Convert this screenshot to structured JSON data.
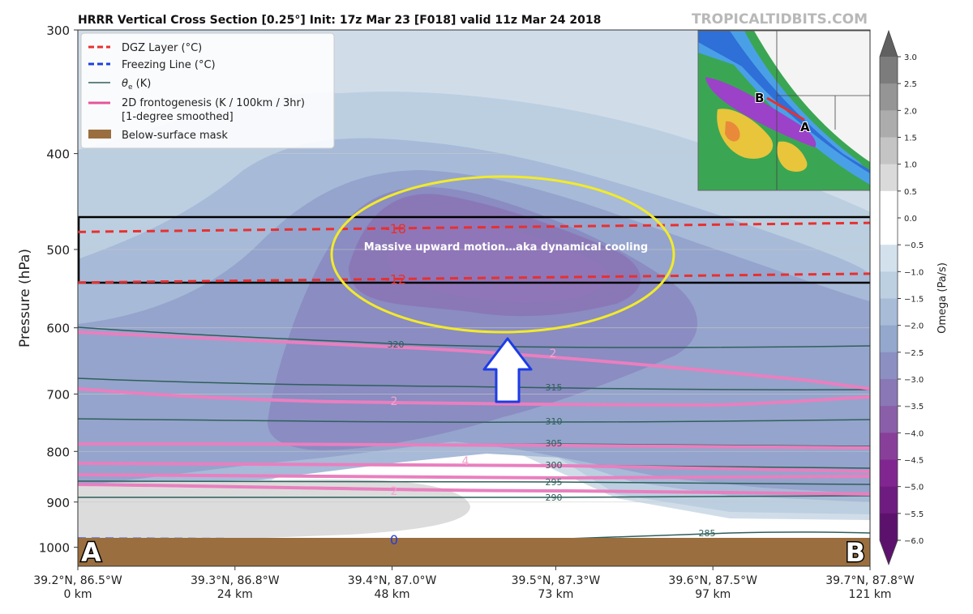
{
  "chart_data": {
    "type": "heatmap",
    "title": "HRRR Vertical Cross Section [0.25°] Init: 17z Mar 23 [F018] valid 11z Mar 24 2018",
    "watermark": "TROPICALTIDBITS.COM",
    "ylabel": "Pressure (hPa)",
    "y_scale": "log",
    "y_axis_inverted": true,
    "ylim": [
      1045,
      300
    ],
    "yticks": [
      300,
      400,
      500,
      600,
      700,
      800,
      900,
      1000
    ],
    "x_km_range": [
      0,
      121
    ],
    "xticks": [
      {
        "km": 0,
        "coord": "39.2°N, 86.5°W",
        "dist": "0 km"
      },
      {
        "km": 24,
        "coord": "39.3°N, 86.8°W",
        "dist": "24 km"
      },
      {
        "km": 48,
        "coord": "39.4°N, 87.0°W",
        "dist": "48 km"
      },
      {
        "km": 73,
        "coord": "39.5°N, 87.3°W",
        "dist": "73 km"
      },
      {
        "km": 97,
        "coord": "39.6°N, 87.5°W",
        "dist": "97 km"
      },
      {
        "km": 121,
        "coord": "39.7°N, 87.8°W",
        "dist": "121 km"
      }
    ],
    "endpoint_labels": {
      "left": "A",
      "right": "B"
    },
    "legend": {
      "placement": "top-left",
      "entries": [
        {
          "label": "DGZ Layer (°C)",
          "color": "#e83030",
          "style": "dashed"
        },
        {
          "label": "Freezing Line (°C)",
          "color": "#1f3fe0",
          "style": "dashed"
        },
        {
          "label_prefix": "θ",
          "label_sub": "e",
          "label_suffix": " (K)",
          "color": "#2f5f5a",
          "style": "solid"
        },
        {
          "label": "2D frontogenesis (K / 100km / 3hr)",
          "label2": "[1-degree smoothed]",
          "color": "#e6559c",
          "style": "solid"
        },
        {
          "label": "Below-surface mask",
          "color": "#9a6e3e",
          "style": "patch"
        }
      ]
    },
    "colorbar": {
      "label": "Omega (Pa/s)",
      "ticks": [
        "3.0",
        "2.5",
        "2.0",
        "1.5",
        "1.0",
        "0.5",
        "0.0",
        "−0.5",
        "−1.0",
        "−1.5",
        "−2.0",
        "−2.5",
        "−3.0",
        "−3.5",
        "−4.0",
        "−4.5",
        "−5.0",
        "−5.5",
        "−6.0"
      ],
      "colors": [
        "#606060",
        "#7c7c7c",
        "#959595",
        "#acacac",
        "#c4c4c4",
        "#dadada",
        "#ffffff",
        "#ffffff",
        "#d3e1ed",
        "#bdd0e2",
        "#a8bcd8",
        "#93a8cc",
        "#8b8fc2",
        "#8a77b5",
        "#8a5ea8",
        "#883f9a",
        "#812690",
        "#6f1c80",
        "#5c126d"
      ]
    },
    "omega_regions": [
      {
        "label": "≈ −1.0",
        "color": "#d0dde9"
      },
      {
        "label": "≈ −1.5",
        "color": "#bccfe1"
      },
      {
        "label": "≈ −2.0",
        "color": "#a7bad8"
      },
      {
        "label": "≈ −2.5",
        "color": "#95a4cc"
      },
      {
        "label": "≈ −3.0",
        "color": "#8a8cc2"
      },
      {
        "label": "≈ −3.5",
        "color": "#8a78b6"
      },
      {
        "label": "0 to 1.0 (below)",
        "color": "#dcdcdc"
      }
    ],
    "dgz_lines": [
      {
        "label": "-18",
        "p_left": 480,
        "p_right": 470
      },
      {
        "label": "-12",
        "p_left": 540,
        "p_right": 529
      }
    ],
    "freezing_line": {
      "label": "0",
      "p_left": 980,
      "p_right": 985
    },
    "theta_e_labels": [
      "320",
      "315",
      "310",
      "305",
      "300",
      "295",
      "290",
      "285"
    ],
    "frontogenesis_labels": [
      "2",
      "2",
      "4",
      "2"
    ],
    "annotations": {
      "box_text": "Massive upward motion…aka dynamical cooling"
    },
    "inset_map": {
      "point_a": "A",
      "point_b": "B"
    }
  }
}
